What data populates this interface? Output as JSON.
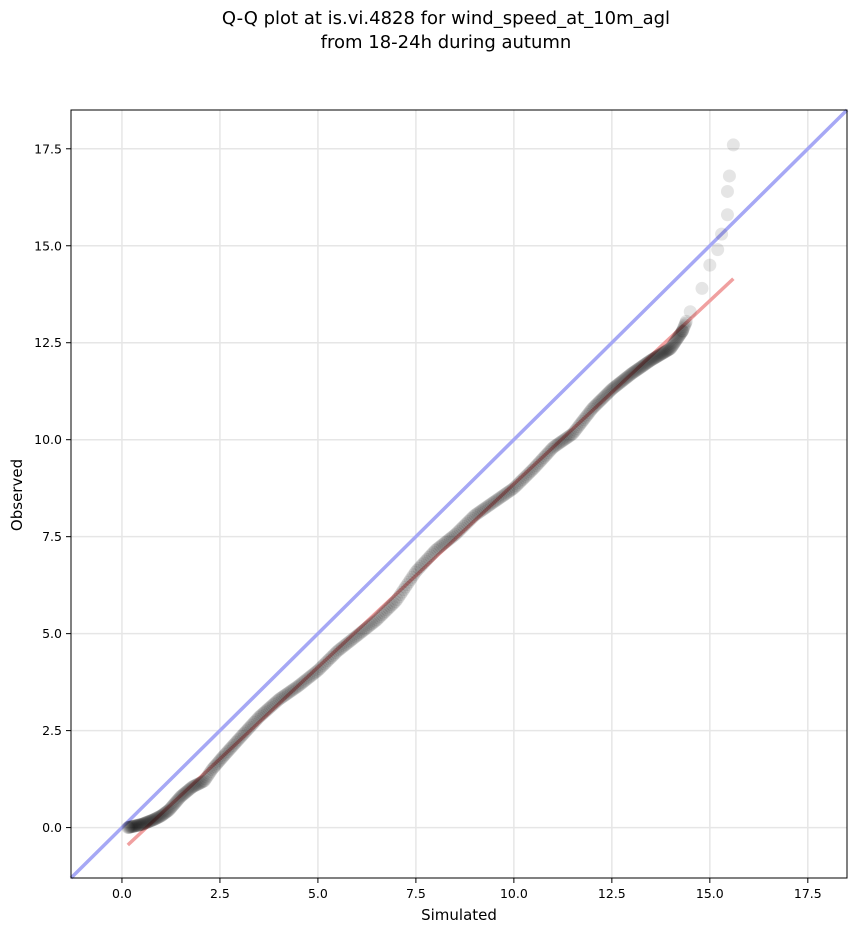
{
  "chart_data": {
    "type": "scatter",
    "title_line1": "Q-Q plot at is.vi.4828 for wind_speed_at_10m_agl",
    "title_line2": "from 18-24h during autumn",
    "xlabel": "Simulated",
    "ylabel": "Observed",
    "xlim": [
      -1.3,
      18.5
    ],
    "ylim": [
      -1.3,
      18.5
    ],
    "xticks": [
      0.0,
      2.5,
      5.0,
      7.5,
      10.0,
      12.5,
      15.0,
      17.5
    ],
    "yticks": [
      0.0,
      2.5,
      5.0,
      7.5,
      10.0,
      12.5,
      15.0,
      17.5
    ],
    "xtick_labels": [
      "0.0",
      "2.5",
      "5.0",
      "7.5",
      "10.0",
      "12.5",
      "15.0",
      "17.5"
    ],
    "ytick_labels": [
      "0.0",
      "2.5",
      "5.0",
      "7.5",
      "10.0",
      "12.5",
      "15.0",
      "17.5"
    ],
    "grid": true,
    "colors": {
      "points": "#000000",
      "reference_line": "#a6a8f5",
      "fit_line": "#f0a0a0",
      "grid": "#e6e6e6"
    },
    "reference_line": {
      "from": [
        -1.3,
        -1.3
      ],
      "to": [
        18.5,
        18.5
      ]
    },
    "fit_line": {
      "from": [
        0.15,
        -0.45
      ],
      "to": [
        15.6,
        14.15
      ]
    },
    "quantile_curve": [
      [
        0.15,
        0.0
      ],
      [
        0.5,
        0.08
      ],
      [
        0.8,
        0.2
      ],
      [
        1.0,
        0.3
      ],
      [
        1.2,
        0.45
      ],
      [
        1.5,
        0.8
      ],
      [
        1.8,
        1.05
      ],
      [
        2.1,
        1.2
      ],
      [
        2.3,
        1.5
      ],
      [
        2.6,
        1.85
      ],
      [
        3.0,
        2.3
      ],
      [
        3.5,
        2.85
      ],
      [
        4.0,
        3.3
      ],
      [
        4.5,
        3.65
      ],
      [
        5.0,
        4.05
      ],
      [
        5.5,
        4.55
      ],
      [
        6.0,
        4.95
      ],
      [
        6.5,
        5.35
      ],
      [
        7.0,
        5.85
      ],
      [
        7.5,
        6.6
      ],
      [
        8.0,
        7.15
      ],
      [
        8.5,
        7.55
      ],
      [
        9.0,
        8.05
      ],
      [
        9.5,
        8.4
      ],
      [
        10.0,
        8.75
      ],
      [
        10.5,
        9.25
      ],
      [
        11.0,
        9.8
      ],
      [
        11.5,
        10.15
      ],
      [
        12.0,
        10.8
      ],
      [
        12.5,
        11.3
      ],
      [
        13.0,
        11.7
      ],
      [
        13.5,
        12.05
      ],
      [
        14.0,
        12.35
      ],
      [
        14.3,
        12.8
      ],
      [
        14.5,
        13.3
      ],
      [
        14.8,
        13.9
      ],
      [
        15.0,
        14.5
      ],
      [
        15.2,
        14.9
      ],
      [
        15.3,
        15.3
      ],
      [
        15.45,
        15.8
      ],
      [
        15.45,
        16.4
      ],
      [
        15.5,
        16.8
      ],
      [
        15.6,
        17.6
      ]
    ]
  }
}
